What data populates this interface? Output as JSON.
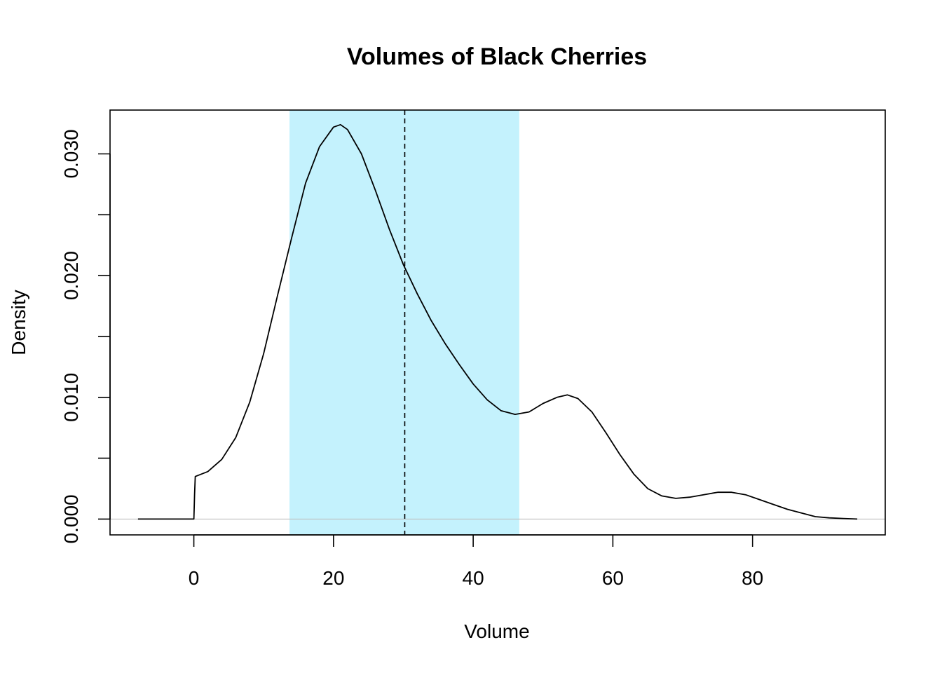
{
  "chart_data": {
    "type": "line",
    "title": "Volumes of Black Cherries",
    "xlabel": "Volume",
    "ylabel": "Density",
    "xlim": [
      -12,
      99
    ],
    "ylim": [
      -0.0013,
      0.0336
    ],
    "x_ticks": [
      {
        "value": 0,
        "label": "0"
      },
      {
        "value": 20,
        "label": "20"
      },
      {
        "value": 40,
        "label": "40"
      },
      {
        "value": 60,
        "label": "60"
      },
      {
        "value": 80,
        "label": "80"
      }
    ],
    "y_ticks": [
      {
        "value": 0.0,
        "label": "0.000"
      },
      {
        "value": 0.005,
        "label": ""
      },
      {
        "value": 0.01,
        "label": "0.010"
      },
      {
        "value": 0.015,
        "label": ""
      },
      {
        "value": 0.02,
        "label": "0.020"
      },
      {
        "value": 0.025,
        "label": ""
      },
      {
        "value": 0.03,
        "label": "0.030"
      }
    ],
    "shaded_interval": {
      "from": 13.7,
      "to": 46.6,
      "color": "#c4f2fd"
    },
    "vline": {
      "x": 30.2,
      "style": "dashed",
      "color": "#000000"
    },
    "hline": {
      "y": 0,
      "color": "#bebebe"
    },
    "curve_color": "#000000",
    "series": [
      {
        "x": [
          -8,
          -4,
          0,
          0.1,
          0.2,
          2,
          4,
          6,
          8,
          10,
          12,
          14,
          16,
          18,
          20,
          21,
          22,
          24,
          26,
          28,
          30,
          32,
          34,
          36,
          38,
          40,
          42,
          44,
          46,
          48,
          50,
          52,
          53.5,
          55,
          57,
          59,
          61,
          63,
          65,
          67,
          69,
          71,
          73,
          75,
          77,
          79,
          81,
          83,
          85,
          87,
          89,
          91,
          93,
          95
        ],
        "y": [
          0,
          0,
          0,
          0.002,
          0.0035,
          0.0039,
          0.0049,
          0.0067,
          0.0096,
          0.0136,
          0.0184,
          0.0231,
          0.0276,
          0.0306,
          0.0322,
          0.0324,
          0.032,
          0.03,
          0.027,
          0.0238,
          0.0209,
          0.0185,
          0.0163,
          0.0144,
          0.0127,
          0.0111,
          0.0098,
          0.0089,
          0.0086,
          0.0088,
          0.0095,
          0.01,
          0.0102,
          0.0099,
          0.0088,
          0.0071,
          0.0053,
          0.0037,
          0.0025,
          0.0019,
          0.0017,
          0.0018,
          0.002,
          0.0022,
          0.0022,
          0.002,
          0.0016,
          0.0012,
          0.0008,
          0.0005,
          0.0002,
          0.0001,
          5e-05,
          0
        ]
      }
    ]
  }
}
